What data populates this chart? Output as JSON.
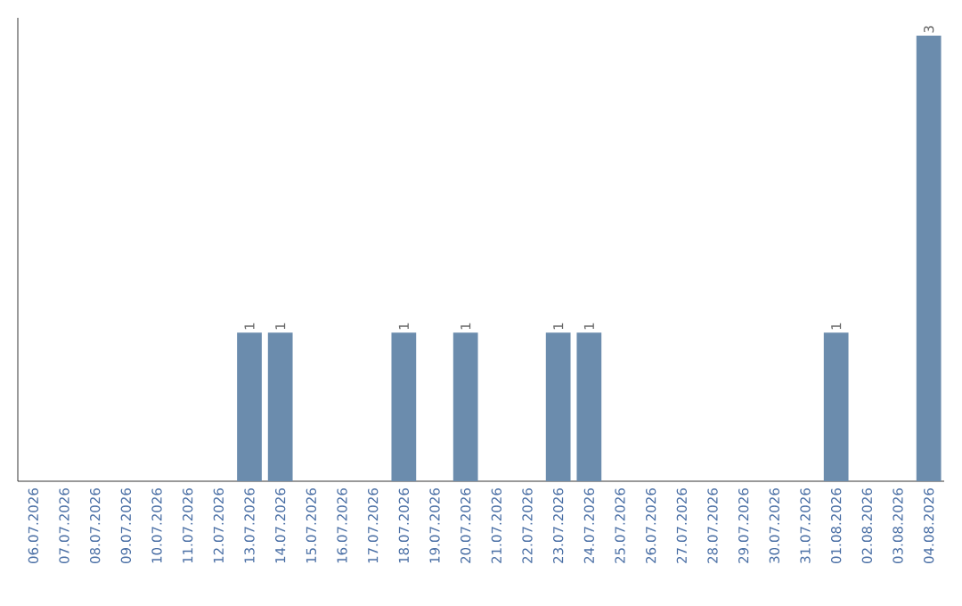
{
  "chart_data": {
    "type": "bar",
    "categories": [
      "06.07.2026",
      "07.07.2026",
      "08.07.2026",
      "09.07.2026",
      "10.07.2026",
      "11.07.2026",
      "12.07.2026",
      "13.07.2026",
      "14.07.2026",
      "15.07.2026",
      "16.07.2026",
      "17.07.2026",
      "18.07.2026",
      "19.07.2026",
      "20.07.2026",
      "21.07.2026",
      "22.07.2026",
      "23.07.2026",
      "24.07.2026",
      "25.07.2026",
      "26.07.2026",
      "27.07.2026",
      "28.07.2026",
      "29.07.2026",
      "30.07.2026",
      "31.07.2026",
      "01.08.2026",
      "02.08.2026",
      "03.08.2026",
      "04.08.2026"
    ],
    "values": [
      0,
      0,
      0,
      0,
      0,
      0,
      0,
      1,
      1,
      0,
      0,
      0,
      1,
      0,
      1,
      0,
      0,
      1,
      1,
      0,
      0,
      0,
      0,
      0,
      0,
      0,
      1,
      0,
      0,
      3
    ],
    "value_labels": [
      null,
      null,
      null,
      null,
      null,
      null,
      null,
      "1",
      "1",
      null,
      null,
      null,
      "1",
      null,
      "1",
      null,
      null,
      "1",
      "1",
      null,
      null,
      null,
      null,
      null,
      null,
      null,
      "1",
      null,
      null,
      "3"
    ],
    "color": "#6b8cad",
    "ylim": [
      0,
      3
    ],
    "tick_labels": "x"
  }
}
